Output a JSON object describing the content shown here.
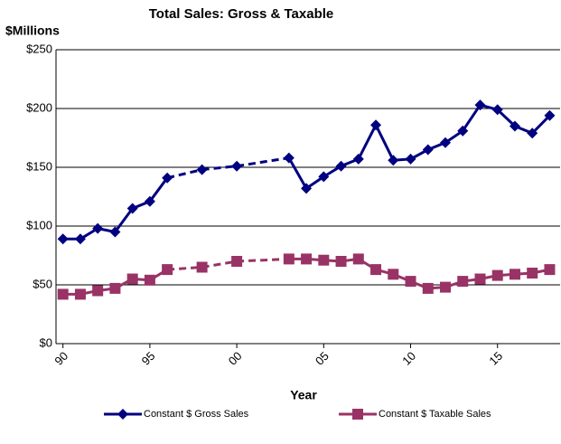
{
  "chart_data": {
    "type": "line",
    "title": "Total Sales: Gross & Taxable",
    "ylabel": "$Millions",
    "xlabel": "Year",
    "x": [
      1990,
      1991,
      1992,
      1993,
      1994,
      1995,
      1996,
      1998,
      2000,
      2003,
      2004,
      2005,
      2006,
      2007,
      2008,
      2009,
      2010,
      2011,
      2012,
      2013,
      2014,
      2015,
      2016,
      2017,
      2018
    ],
    "series": [
      {
        "name": "Constant $ Gross Sales",
        "color": "#000080",
        "marker": "diamond",
        "values": [
          89,
          89,
          98,
          95,
          115,
          121,
          141,
          148,
          151,
          158,
          132,
          142,
          151,
          157,
          186,
          156,
          157,
          165,
          171,
          181,
          203,
          199,
          185,
          179,
          194
        ]
      },
      {
        "name": "Constant $ Taxable Sales",
        "color": "#993366",
        "marker": "square",
        "values": [
          42,
          42,
          45,
          47,
          55,
          54,
          63,
          65,
          70,
          72,
          72,
          71,
          70,
          72,
          63,
          59,
          53,
          47,
          48,
          53,
          55,
          58,
          59,
          60,
          63
        ]
      }
    ],
    "xlim": [
      1989.6,
      2018.6
    ],
    "xticks": [
      {
        "value": 1990,
        "label": "90"
      },
      {
        "value": 1995,
        "label": "95"
      },
      {
        "value": 2000,
        "label": "00"
      },
      {
        "value": 2005,
        "label": "05"
      },
      {
        "value": 2010,
        "label": "10"
      },
      {
        "value": 2015,
        "label": "15"
      }
    ],
    "ylim": [
      0,
      250
    ],
    "yticks": [
      {
        "value": 0,
        "label": "$0"
      },
      {
        "value": 50,
        "label": "$50"
      },
      {
        "value": 100,
        "label": "$100"
      },
      {
        "value": 150,
        "label": "$150"
      },
      {
        "value": 200,
        "label": "$200"
      },
      {
        "value": 250,
        "label": "$250"
      }
    ],
    "grid": true,
    "legend": "bottom"
  }
}
